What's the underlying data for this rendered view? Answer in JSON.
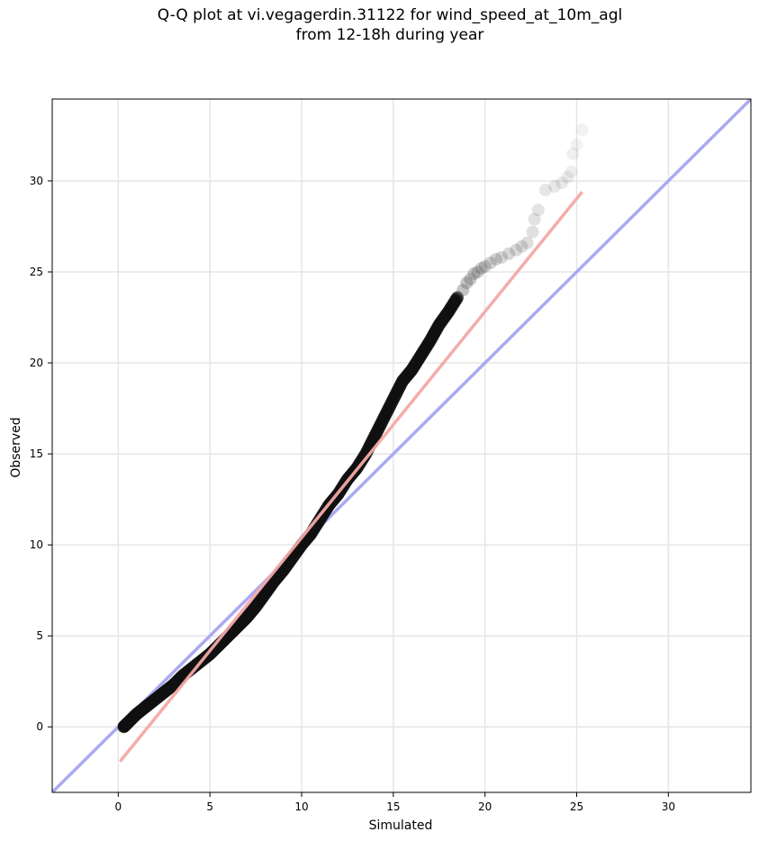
{
  "chart_data": {
    "type": "scatter",
    "title_line1": "Q-Q plot at vi.vegagerdin.31122 for wind_speed_at_10m_agl",
    "title_line2": "from 12-18h during year",
    "xlabel": "Simulated",
    "ylabel": "Observed",
    "xlim": [
      -3.6,
      34.5
    ],
    "ylim": [
      -3.6,
      34.5
    ],
    "xticks": [
      0,
      5,
      10,
      15,
      20,
      25,
      30
    ],
    "yticks": [
      0,
      5,
      10,
      15,
      20,
      25,
      30
    ],
    "grid": true,
    "identity_line": {
      "color": "#aaaaf2",
      "from": [
        -3.6,
        -3.6
      ],
      "to": [
        34.5,
        34.5
      ]
    },
    "fit_line": {
      "color": "#f5a8a8",
      "from": [
        0.1,
        -1.9
      ],
      "to": [
        25.3,
        29.4
      ]
    },
    "quantile_curve": [
      [
        0.3,
        0.0
      ],
      [
        0.5,
        0.2
      ],
      [
        1.0,
        0.7
      ],
      [
        1.5,
        1.1
      ],
      [
        2.0,
        1.5
      ],
      [
        2.5,
        1.9
      ],
      [
        3.0,
        2.3
      ],
      [
        3.5,
        2.8
      ],
      [
        4.0,
        3.2
      ],
      [
        4.5,
        3.6
      ],
      [
        5.0,
        4.0
      ],
      [
        5.5,
        4.5
      ],
      [
        6.0,
        5.0
      ],
      [
        6.5,
        5.5
      ],
      [
        7.0,
        6.0
      ],
      [
        7.5,
        6.6
      ],
      [
        8.0,
        7.3
      ],
      [
        8.5,
        8.0
      ],
      [
        9.0,
        8.6
      ],
      [
        9.5,
        9.3
      ],
      [
        10.0,
        10.0
      ],
      [
        10.5,
        10.6
      ],
      [
        11.0,
        11.4
      ],
      [
        11.5,
        12.2
      ],
      [
        12.0,
        12.8
      ],
      [
        12.5,
        13.6
      ],
      [
        13.0,
        14.2
      ],
      [
        13.5,
        15.0
      ],
      [
        14.0,
        16.0
      ],
      [
        14.5,
        17.0
      ],
      [
        15.0,
        18.0
      ],
      [
        15.5,
        19.0
      ],
      [
        16.0,
        19.6
      ],
      [
        16.5,
        20.4
      ],
      [
        17.0,
        21.2
      ],
      [
        17.5,
        22.1
      ],
      [
        18.0,
        22.8
      ],
      [
        18.5,
        23.6
      ]
    ],
    "sparse_points": [
      [
        18.8,
        24.0
      ],
      [
        19.0,
        24.4
      ],
      [
        19.2,
        24.6
      ],
      [
        19.4,
        24.9
      ],
      [
        19.6,
        25.0
      ],
      [
        19.8,
        25.2
      ],
      [
        20.0,
        25.3
      ],
      [
        20.3,
        25.5
      ],
      [
        20.6,
        25.7
      ],
      [
        20.9,
        25.8
      ],
      [
        21.3,
        26.0
      ],
      [
        21.7,
        26.2
      ],
      [
        22.0,
        26.4
      ],
      [
        22.3,
        26.6
      ],
      [
        22.6,
        27.2
      ],
      [
        22.7,
        27.9
      ],
      [
        22.9,
        28.4
      ],
      [
        23.3,
        29.5
      ],
      [
        23.8,
        29.7
      ],
      [
        24.2,
        29.9
      ],
      [
        24.5,
        30.2
      ],
      [
        24.7,
        30.5
      ],
      [
        24.8,
        31.5
      ],
      [
        25.0,
        32.0
      ],
      [
        25.3,
        32.8
      ]
    ]
  }
}
